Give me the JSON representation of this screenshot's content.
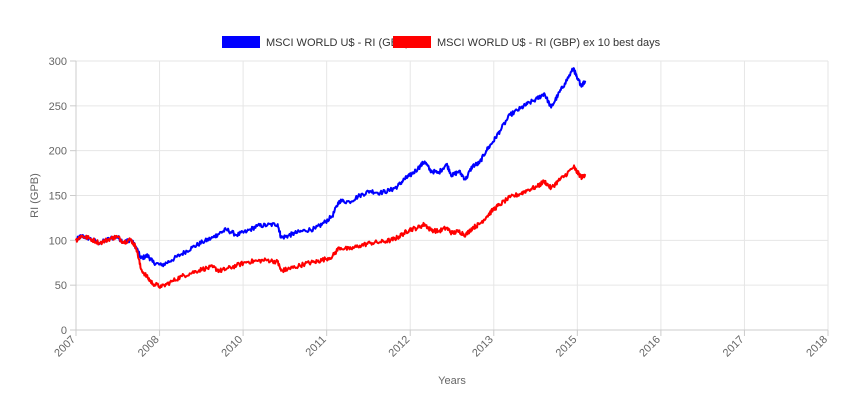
{
  "chart_data": {
    "type": "line",
    "title": "",
    "xlabel": "Years",
    "ylabel": "RI (GPB)",
    "xlim": [
      2007,
      2018
    ],
    "ylim": [
      0,
      300
    ],
    "x_ticks": [
      "2007",
      "2008",
      "2010",
      "2011",
      "2012",
      "2013",
      "2015",
      "2016",
      "2017",
      "2018"
    ],
    "y_ticks": [
      0,
      50,
      100,
      150,
      200,
      250,
      300
    ],
    "grid": true,
    "legend_position": "top-center",
    "series": [
      {
        "name": "MSCI WORLD U$ - RI (GBP)",
        "color": "#0000ff",
        "points": [
          [
            2007.0,
            100
          ],
          [
            2007.08,
            105
          ],
          [
            2007.2,
            102
          ],
          [
            2007.35,
            97
          ],
          [
            2007.5,
            102
          ],
          [
            2007.6,
            104
          ],
          [
            2007.7,
            98
          ],
          [
            2007.8,
            101
          ],
          [
            2007.88,
            92
          ],
          [
            2007.95,
            80
          ],
          [
            2008.05,
            83
          ],
          [
            2008.12,
            76
          ],
          [
            2008.25,
            72
          ],
          [
            2008.4,
            78
          ],
          [
            2008.55,
            85
          ],
          [
            2008.7,
            92
          ],
          [
            2008.85,
            98
          ],
          [
            2009.0,
            103
          ],
          [
            2009.1,
            108
          ],
          [
            2009.2,
            112
          ],
          [
            2009.35,
            106
          ],
          [
            2009.5,
            110
          ],
          [
            2009.65,
            116
          ],
          [
            2009.8,
            117
          ],
          [
            2009.95,
            118
          ],
          [
            2010.0,
            103
          ],
          [
            2010.1,
            105
          ],
          [
            2010.2,
            108
          ],
          [
            2010.35,
            111
          ],
          [
            2010.5,
            113
          ],
          [
            2010.6,
            118
          ],
          [
            2010.75,
            127
          ],
          [
            2010.85,
            144
          ],
          [
            2011.0,
            143
          ],
          [
            2011.15,
            150
          ],
          [
            2011.3,
            155
          ],
          [
            2011.45,
            153
          ],
          [
            2011.6,
            156
          ],
          [
            2011.7,
            160
          ],
          [
            2011.8,
            168
          ],
          [
            2011.88,
            172
          ],
          [
            2012.0,
            180
          ],
          [
            2012.1,
            188
          ],
          [
            2012.18,
            178
          ],
          [
            2012.3,
            175
          ],
          [
            2012.42,
            185
          ],
          [
            2012.5,
            172
          ],
          [
            2012.6,
            177
          ],
          [
            2012.7,
            168
          ],
          [
            2012.8,
            183
          ],
          [
            2012.9,
            186
          ],
          [
            2013.0,
            200
          ],
          [
            2013.1,
            210
          ],
          [
            2013.2,
            222
          ],
          [
            2013.35,
            240
          ],
          [
            2013.5,
            247
          ],
          [
            2013.6,
            252
          ],
          [
            2013.75,
            258
          ],
          [
            2013.85,
            264
          ],
          [
            2013.95,
            248
          ],
          [
            2014.05,
            262
          ],
          [
            2014.15,
            275
          ],
          [
            2014.28,
            292
          ],
          [
            2014.33,
            280
          ],
          [
            2014.4,
            273
          ],
          [
            2014.45,
            278
          ]
        ]
      },
      {
        "name": "MSCI WORLD U$ - RI (GBP) ex 10 best days",
        "color": "#ff0000",
        "points": [
          [
            2007.0,
            100
          ],
          [
            2007.08,
            105
          ],
          [
            2007.2,
            102
          ],
          [
            2007.35,
            97
          ],
          [
            2007.5,
            102
          ],
          [
            2007.6,
            104
          ],
          [
            2007.7,
            98
          ],
          [
            2007.8,
            101
          ],
          [
            2007.88,
            92
          ],
          [
            2007.95,
            68
          ],
          [
            2008.05,
            58
          ],
          [
            2008.12,
            52
          ],
          [
            2008.25,
            48
          ],
          [
            2008.4,
            54
          ],
          [
            2008.55,
            60
          ],
          [
            2008.7,
            64
          ],
          [
            2008.85,
            68
          ],
          [
            2009.0,
            70
          ],
          [
            2009.1,
            66
          ],
          [
            2009.2,
            68
          ],
          [
            2009.35,
            72
          ],
          [
            2009.5,
            76
          ],
          [
            2009.65,
            77
          ],
          [
            2009.8,
            78
          ],
          [
            2009.95,
            76
          ],
          [
            2010.0,
            66
          ],
          [
            2010.1,
            68
          ],
          [
            2010.2,
            70
          ],
          [
            2010.35,
            74
          ],
          [
            2010.5,
            76
          ],
          [
            2010.6,
            78
          ],
          [
            2010.75,
            82
          ],
          [
            2010.85,
            92
          ],
          [
            2011.0,
            90
          ],
          [
            2011.15,
            94
          ],
          [
            2011.3,
            97
          ],
          [
            2011.45,
            98
          ],
          [
            2011.6,
            100
          ],
          [
            2011.7,
            103
          ],
          [
            2011.8,
            108
          ],
          [
            2011.88,
            112
          ],
          [
            2012.0,
            114
          ],
          [
            2012.1,
            118
          ],
          [
            2012.18,
            112
          ],
          [
            2012.3,
            110
          ],
          [
            2012.42,
            114
          ],
          [
            2012.5,
            108
          ],
          [
            2012.6,
            110
          ],
          [
            2012.7,
            106
          ],
          [
            2012.8,
            114
          ],
          [
            2012.9,
            118
          ],
          [
            2013.0,
            126
          ],
          [
            2013.1,
            134
          ],
          [
            2013.2,
            140
          ],
          [
            2013.35,
            148
          ],
          [
            2013.5,
            152
          ],
          [
            2013.6,
            156
          ],
          [
            2013.75,
            160
          ],
          [
            2013.85,
            166
          ],
          [
            2013.95,
            158
          ],
          [
            2014.05,
            166
          ],
          [
            2014.15,
            172
          ],
          [
            2014.28,
            182
          ],
          [
            2014.33,
            176
          ],
          [
            2014.4,
            170
          ],
          [
            2014.45,
            174
          ]
        ]
      }
    ]
  }
}
